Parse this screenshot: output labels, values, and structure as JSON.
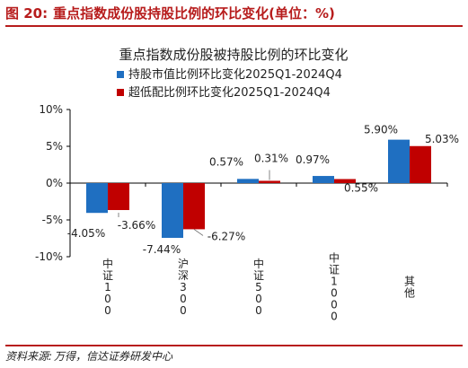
{
  "figure": {
    "label": "图 20:",
    "caption": "重点指数成份股持股比例的环比变化(单位：%)",
    "source_label": "资料来源:",
    "source_text": "万得，信达证券研发中心"
  },
  "colors": {
    "accent": "#b71c1c",
    "series_blue": "#1f6fc1",
    "series_red": "#c00000"
  },
  "chart_data": {
    "type": "bar",
    "title": "重点指数成份股被持股比例的环比变化",
    "categories": [
      "中证100",
      "沪深300",
      "中证500",
      "中证1000",
      "其他"
    ],
    "series": [
      {
        "name": "持股市值比例环比变化2025Q1-2024Q4",
        "color": "#1f6fc1",
        "values": [
          -4.05,
          -7.44,
          0.57,
          0.97,
          5.9
        ],
        "labels": [
          "-4.05%",
          "-7.44%",
          "0.57%",
          "0.97%",
          "5.90%"
        ]
      },
      {
        "name": "超低配比例环比变化2025Q1-2024Q4",
        "color": "#c00000",
        "values": [
          -3.66,
          -6.27,
          0.31,
          0.55,
          5.03
        ],
        "labels": [
          "-3.66%",
          "-6.27%",
          "0.31%",
          "0.55%",
          "5.03%"
        ]
      }
    ],
    "yticks": [
      10,
      5,
      0,
      -5,
      -10
    ],
    "ytick_labels": [
      "10%",
      "5%",
      "0%",
      "-5%",
      "-10%"
    ],
    "ylim": [
      -10,
      10
    ],
    "xlabel": "",
    "ylabel": "",
    "grid": false,
    "legend_position": "top-left"
  }
}
